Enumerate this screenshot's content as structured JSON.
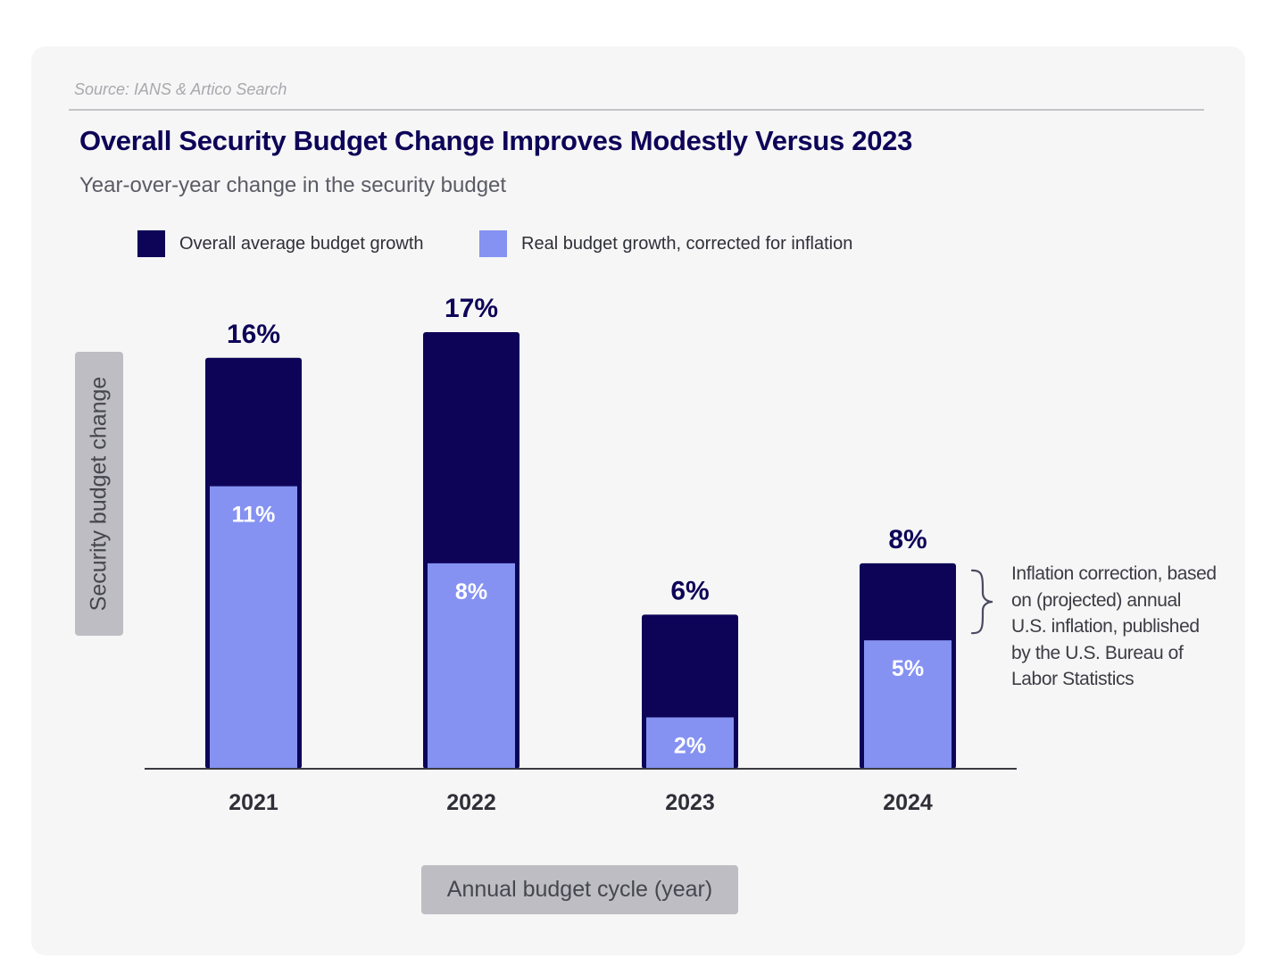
{
  "source": "Source: IANS & Artico Search",
  "colors": {
    "overall": "#0d0458",
    "real": "#8592f2",
    "card": "#f6f6f6",
    "label_box": "#bdbdc3"
  },
  "chart_data": {
    "type": "bar",
    "title": "Overall Security Budget Change Improves Modestly Versus 2023",
    "subtitle": "Year-over-year change in the security budget",
    "xlabel": "Annual budget cycle (year)",
    "ylabel": "Security budget change",
    "categories": [
      "2021",
      "2022",
      "2023",
      "2024"
    ],
    "series": [
      {
        "name": "Overall average budget growth",
        "values": [
          16,
          17,
          6,
          8
        ],
        "labels": [
          "16%",
          "17%",
          "6%",
          "8%"
        ],
        "color": "#0d0458"
      },
      {
        "name": "Real budget growth, corrected for inflation",
        "values": [
          11,
          8,
          2,
          5
        ],
        "labels": [
          "11%",
          "8%",
          "2%",
          "5%"
        ],
        "color": "#8592f2"
      }
    ],
    "ylim": [
      0,
      17
    ],
    "grid": false,
    "legend_position": "top-left",
    "annotation": "Inflation correction, based on (projected) annual U.S. inflation, published by the U.S. Bureau of Labor Statistics"
  }
}
